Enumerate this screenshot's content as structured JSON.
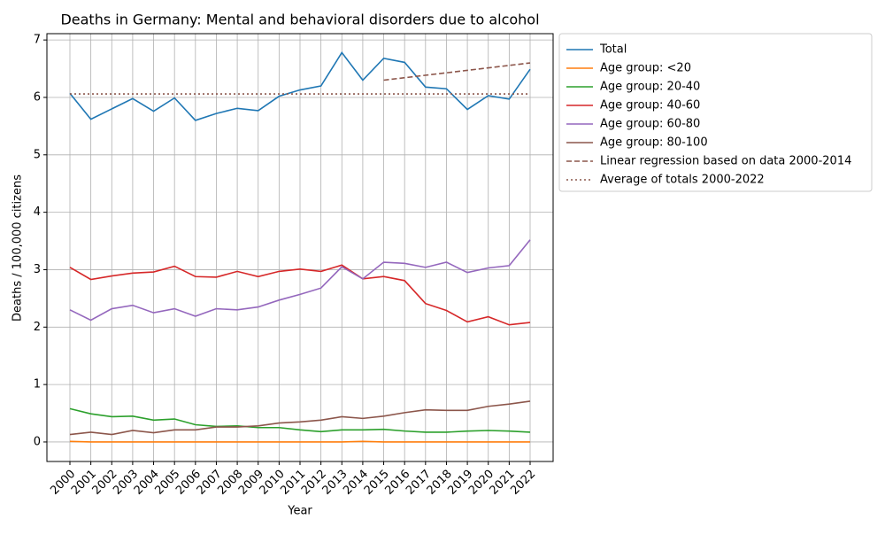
{
  "chart_data": {
    "type": "line",
    "title": "Deaths in Germany: Mental and behavioral disorders due to alcohol",
    "x_label": "Year",
    "y_label": "Deaths / 100,000 citizens",
    "x": [
      2000,
      2001,
      2002,
      2003,
      2004,
      2005,
      2006,
      2007,
      2008,
      2009,
      2010,
      2011,
      2012,
      2013,
      2014,
      2015,
      2016,
      2017,
      2018,
      2019,
      2020,
      2021,
      2022
    ],
    "xlim": [
      1998.9,
      2023.1
    ],
    "xticks": [
      2000,
      2001,
      2002,
      2003,
      2004,
      2005,
      2006,
      2007,
      2008,
      2009,
      2010,
      2011,
      2012,
      2013,
      2014,
      2015,
      2016,
      2017,
      2018,
      2019,
      2020,
      2021,
      2022
    ],
    "ylim": [
      -0.34,
      7.11
    ],
    "yticks": [
      0,
      1,
      2,
      3,
      4,
      5,
      6,
      7
    ],
    "grid": true,
    "legend": "outside upper right",
    "series": [
      {
        "name": "Total",
        "color": "#1f77b4",
        "values": [
          6.07,
          5.62,
          5.8,
          5.98,
          5.76,
          5.99,
          5.6,
          5.72,
          5.81,
          5.77,
          6.02,
          6.13,
          6.2,
          6.78,
          6.3,
          6.68,
          6.61,
          6.18,
          6.15,
          5.79,
          6.03,
          5.97,
          6.49
        ]
      },
      {
        "name": "Age group: <20",
        "color": "#ff7f0e",
        "values": [
          0.01,
          0,
          0,
          0,
          0,
          0,
          0,
          0,
          0,
          0,
          0,
          0,
          0,
          0,
          0.01,
          0,
          0,
          0,
          0,
          0,
          0,
          0,
          0
        ]
      },
      {
        "name": "Age group: 20-40",
        "color": "#2ca02c",
        "values": [
          0.58,
          0.49,
          0.44,
          0.45,
          0.38,
          0.4,
          0.3,
          0.27,
          0.28,
          0.25,
          0.25,
          0.21,
          0.18,
          0.21,
          0.21,
          0.22,
          0.19,
          0.17,
          0.17,
          0.19,
          0.2,
          0.19,
          0.17
        ]
      },
      {
        "name": "Age group: 40-60",
        "color": "#d62728",
        "values": [
          3.04,
          2.83,
          2.89,
          2.94,
          2.96,
          3.06,
          2.88,
          2.87,
          2.97,
          2.88,
          2.97,
          3.01,
          2.97,
          3.08,
          2.84,
          2.88,
          2.81,
          2.41,
          2.29,
          2.09,
          2.18,
          2.04,
          2.08
        ]
      },
      {
        "name": "Age group: 60-80",
        "color": "#9467bd",
        "values": [
          2.3,
          2.12,
          2.32,
          2.38,
          2.25,
          2.32,
          2.19,
          2.32,
          2.3,
          2.35,
          2.47,
          2.57,
          2.68,
          3.05,
          2.84,
          3.13,
          3.11,
          3.04,
          3.13,
          2.95,
          3.03,
          3.07,
          3.52
        ]
      },
      {
        "name": "Age group: 80-100",
        "color": "#8c564b",
        "values": [
          0.13,
          0.17,
          0.13,
          0.2,
          0.16,
          0.21,
          0.21,
          0.26,
          0.26,
          0.28,
          0.33,
          0.35,
          0.38,
          0.44,
          0.41,
          0.45,
          0.51,
          0.56,
          0.55,
          0.55,
          0.62,
          0.66,
          0.71
        ]
      },
      {
        "name": "Linear regression based on data 2000-2014",
        "color": "#8c564b",
        "dash": "dashed",
        "x": [
          2015,
          2022
        ],
        "values": [
          6.3,
          6.6
        ]
      },
      {
        "name": "Average of totals 2000-2022",
        "color": "#8c564b",
        "dash": "dotted",
        "x": [
          2000,
          2022
        ],
        "values": [
          6.06,
          6.06
        ]
      }
    ]
  }
}
